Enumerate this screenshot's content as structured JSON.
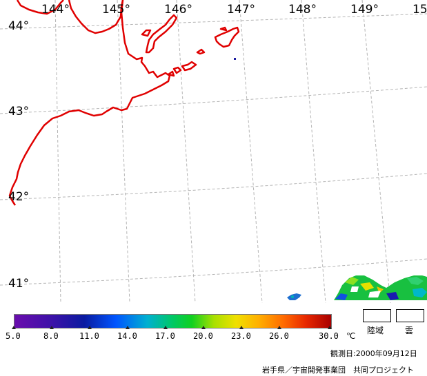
{
  "map": {
    "lon_labels": [
      "144°",
      "145°",
      "146°",
      "147°",
      "148°",
      "149°",
      "15"
    ],
    "lat_labels": [
      "44°",
      "43°",
      "42°",
      "41°"
    ],
    "coast_color": "#e00000",
    "grid_color": "#b4b4b4"
  },
  "colorbar": {
    "tick_labels": [
      "5.0",
      "8.0",
      "11.0",
      "14.0",
      "17.0",
      "20.0",
      "23.0",
      "26.0",
      "30.0"
    ],
    "unit": "℃",
    "range": [
      5.0,
      30.0
    ]
  },
  "legend": {
    "land_label": "陸域",
    "cloud_label": "雲"
  },
  "footer": {
    "observation_date": "観測日:2000年09月12日",
    "credit": "岩手県／宇宙開発事業団　共同プロジェクト"
  }
}
